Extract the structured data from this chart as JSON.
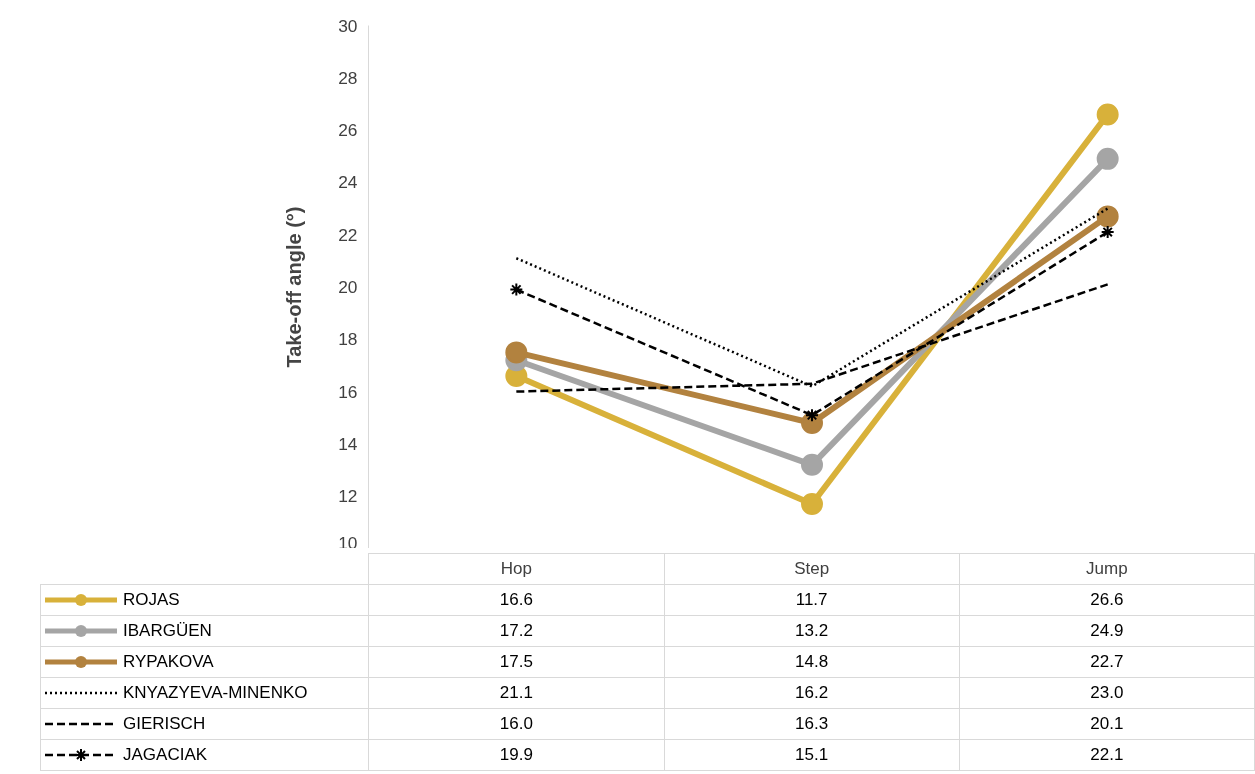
{
  "chart_data": {
    "type": "line",
    "ylabel": "Take-off angle (°)",
    "categories": [
      "Hop",
      "Step",
      "Jump"
    ],
    "ylim": [
      10,
      30
    ],
    "yticks": [
      10,
      12,
      14,
      16,
      18,
      20,
      22,
      24,
      26,
      28,
      30
    ],
    "grid": false,
    "legend": "bottom",
    "data_labels": true,
    "series": [
      {
        "name": "ROJAS",
        "color": "#d8b13a",
        "values": [
          16.6,
          11.7,
          26.6
        ],
        "marker": "circle",
        "line_style": "solid"
      },
      {
        "name": "IBARGÜEN",
        "color": "#a5a5a5",
        "values": [
          17.2,
          13.2,
          24.9
        ],
        "marker": "circle",
        "line_style": "solid"
      },
      {
        "name": "RYPAKOVA",
        "color": "#b2823f",
        "values": [
          17.5,
          14.8,
          22.7
        ],
        "marker": "circle",
        "line_style": "solid"
      },
      {
        "name": "KNYAZYEVA-MINENKO",
        "color": "#000000",
        "values": [
          21.1,
          16.2,
          23.0
        ],
        "value_labels": [
          "21.1",
          "16.2",
          "23.0"
        ],
        "marker": "none",
        "line_style": "dotted"
      },
      {
        "name": "GIERISCH",
        "color": "#000000",
        "values": [
          16.0,
          16.3,
          20.1
        ],
        "value_labels": [
          "16.0",
          "16.3",
          "20.1"
        ],
        "marker": "none",
        "line_style": "dashed"
      },
      {
        "name": "JAGACIAK",
        "color": "#000000",
        "values": [
          19.9,
          15.1,
          22.1
        ],
        "marker": "cross",
        "line_style": "dashed"
      }
    ]
  }
}
